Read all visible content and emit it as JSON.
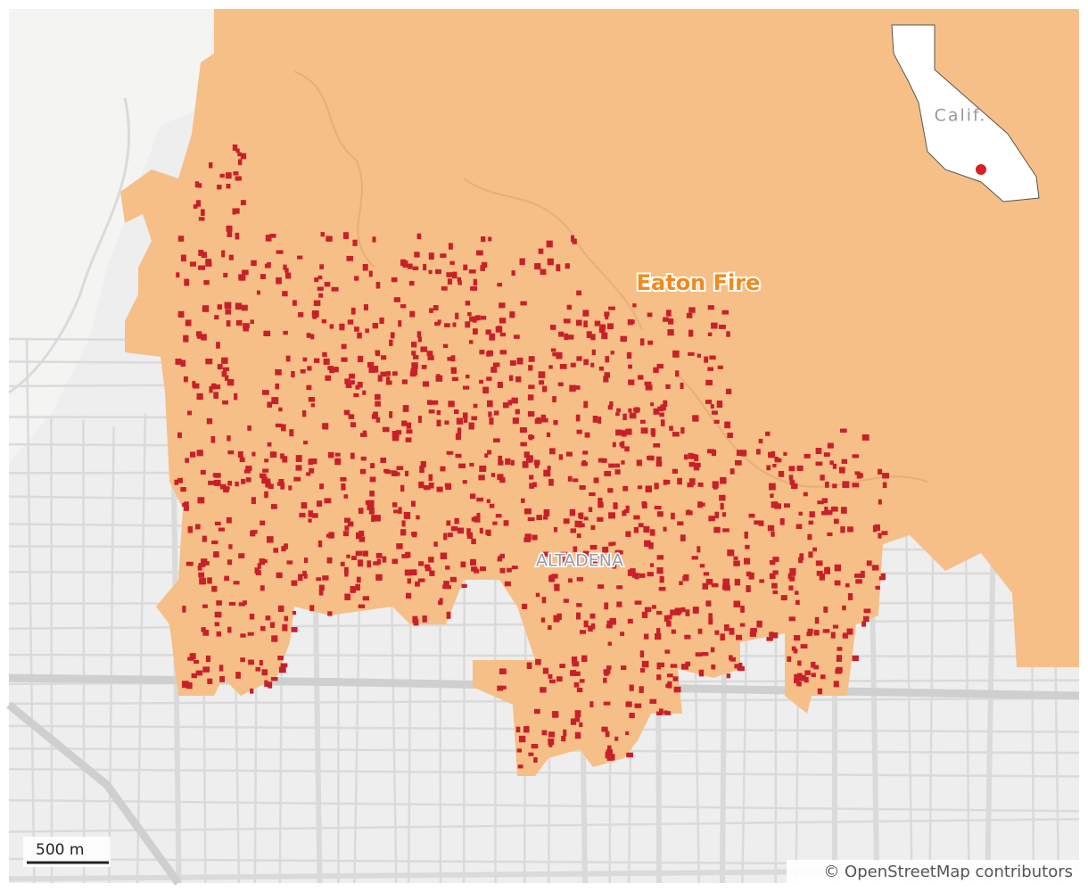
{
  "map": {
    "fire_label": "Eaton Fire",
    "place_label": "ALTADENA",
    "inset_label": "Calif.",
    "scale_label": "500 m",
    "attribution": "© OpenStreetMap contributors"
  }
}
